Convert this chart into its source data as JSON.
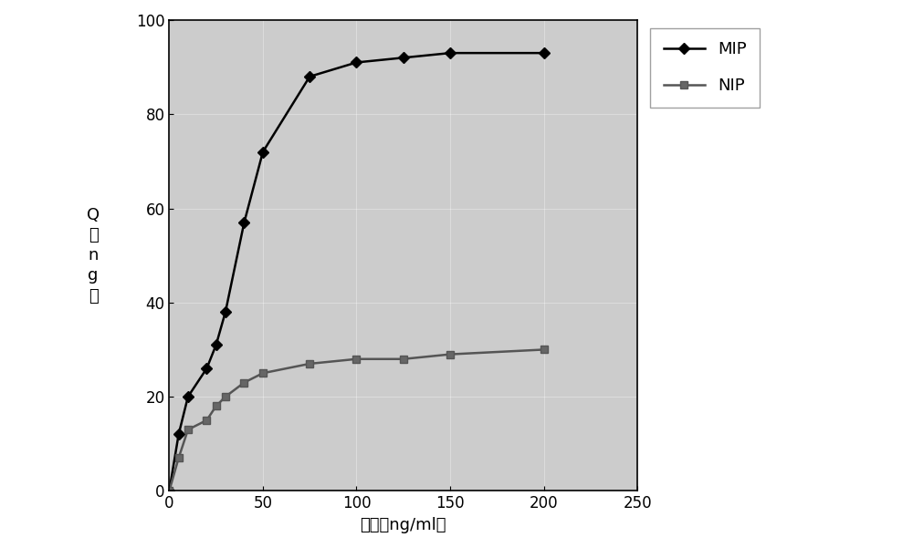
{
  "mip_x": [
    0,
    5,
    10,
    20,
    25,
    30,
    40,
    50,
    75,
    100,
    125,
    150,
    200
  ],
  "mip_y": [
    0,
    12,
    20,
    26,
    31,
    38,
    57,
    72,
    88,
    91,
    92,
    93,
    93
  ],
  "nip_x": [
    0,
    5,
    10,
    20,
    25,
    30,
    40,
    50,
    75,
    100,
    125,
    150,
    200
  ],
  "nip_y": [
    0,
    7,
    13,
    15,
    18,
    20,
    23,
    25,
    27,
    28,
    28,
    29,
    30
  ],
  "mip_color": "#000000",
  "nip_color": "#555555",
  "xlabel": "浓度（ng/ml）",
  "xlim": [
    0,
    250
  ],
  "ylim": [
    0,
    100
  ],
  "xticks": [
    0,
    50,
    100,
    150,
    200,
    250
  ],
  "yticks": [
    0,
    20,
    40,
    60,
    80,
    100
  ],
  "plot_bg_color": "#cccccc",
  "fig_bg_color": "#ffffff",
  "legend_mip": "MIP",
  "legend_nip": "NIP",
  "label_fontsize": 13,
  "tick_fontsize": 12,
  "legend_fontsize": 13,
  "ylabel_chars": [
    "Q",
    "（",
    "n",
    "g",
    "）"
  ]
}
